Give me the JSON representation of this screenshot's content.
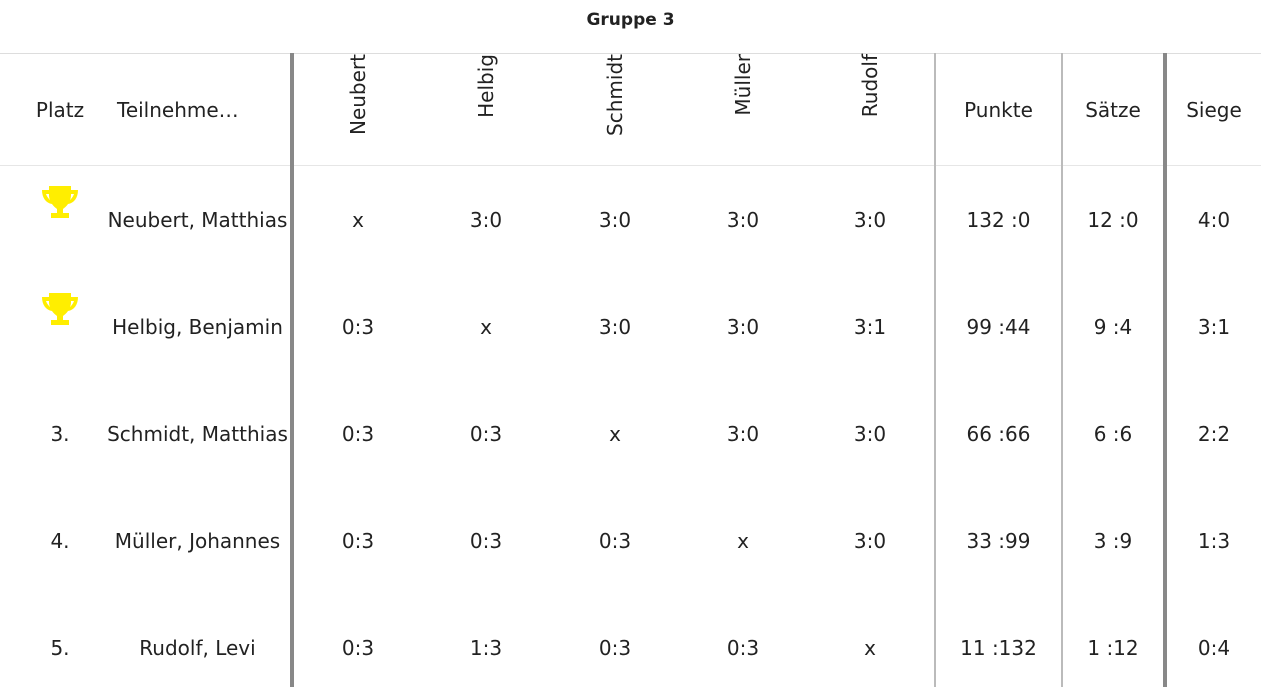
{
  "title": "Gruppe 3",
  "table": {
    "headers": [
      "Platz",
      "Teilnehme…",
      "Neubert",
      "Helbig",
      "Schmidt",
      "Müller",
      "Rudolf",
      "Punkte",
      "Sätze",
      "Siege"
    ],
    "rows": [
      {
        "name": "Neubert, Matthias",
        "results": [
          "x",
          "3:0",
          "3:0",
          "3:0",
          "3:0"
        ],
        "punkte": "132 :0",
        "saetze": "12 :0",
        "siege": "4:0"
      },
      {
        "name": "Helbig, Benjamin",
        "results": [
          "0:3",
          "x",
          "3:0",
          "3:0",
          "3:1"
        ],
        "punkte": "99 :44",
        "saetze": "9 :4",
        "siege": "3:1"
      },
      {
        "place": "3.",
        "name": "Schmidt, Matthias",
        "results": [
          "0:3",
          "0:3",
          "x",
          "3:0",
          "3:0"
        ],
        "punkte": "66 :66",
        "saetze": "6 :6",
        "siege": "2:2"
      },
      {
        "place": "4.",
        "name": "Müller, Johannes",
        "results": [
          "0:3",
          "0:3",
          "0:3",
          "x",
          "3:0"
        ],
        "punkte": "33 :99",
        "saetze": "3 :9",
        "siege": "1:3"
      },
      {
        "place": "5.",
        "name": "Rudolf, Levi",
        "results": [
          "0:3",
          "1:3",
          "0:3",
          "0:3",
          "x"
        ],
        "punkte": "11 :132",
        "saetze": "1 :12",
        "siege": "0:4"
      }
    ]
  }
}
